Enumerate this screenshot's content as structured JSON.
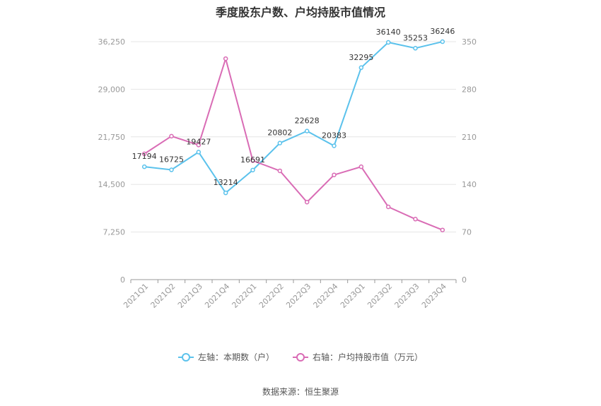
{
  "title": "季度股东户数、户均持股市值情况",
  "source": "数据来源：恒生聚源",
  "colors": {
    "left_series": "#5bc2ec",
    "right_series": "#d96cb5",
    "grid": "#e6e6e6",
    "axis": "#999999"
  },
  "chart_data": {
    "type": "line",
    "title": "季度股东户数、户均持股市值情况",
    "categories": [
      "2021Q1",
      "2021Q2",
      "2021Q3",
      "2021Q4",
      "2022Q1",
      "2022Q2",
      "2022Q3",
      "2022Q4",
      "2023Q1",
      "2023Q2",
      "2023Q3",
      "2023Q4"
    ],
    "y_left": {
      "ticks": [
        0,
        7250,
        14500,
        21750,
        29000,
        36250
      ],
      "tick_labels": [
        "0",
        "7,250",
        "14,500",
        "21,750",
        "29,000",
        "36,250"
      ],
      "ylim": [
        0,
        36250
      ]
    },
    "y_right": {
      "ticks": [
        0,
        70,
        140,
        210,
        280,
        350
      ],
      "tick_labels": [
        "0",
        "70",
        "140",
        "210",
        "280",
        "350"
      ],
      "ylim": [
        0,
        350
      ]
    },
    "grid": true,
    "legend_position": "bottom",
    "series": [
      {
        "name": "左轴：本期数（户）",
        "axis": "left",
        "values": [
          17194,
          16725,
          19427,
          13214,
          16691,
          20802,
          22628,
          20383,
          32295,
          36140,
          35253,
          36246
        ],
        "labels": [
          "17194",
          "16725",
          "19427",
          "13214",
          "16691",
          "20802",
          "22628",
          "20383",
          "32295",
          "36140",
          "35253",
          "36246"
        ]
      },
      {
        "name": "右轴：户均持股市值（万元）",
        "axis": "right",
        "values": [
          185,
          211,
          198,
          325,
          175,
          160,
          114,
          154,
          166,
          107,
          89,
          73
        ]
      }
    ]
  }
}
